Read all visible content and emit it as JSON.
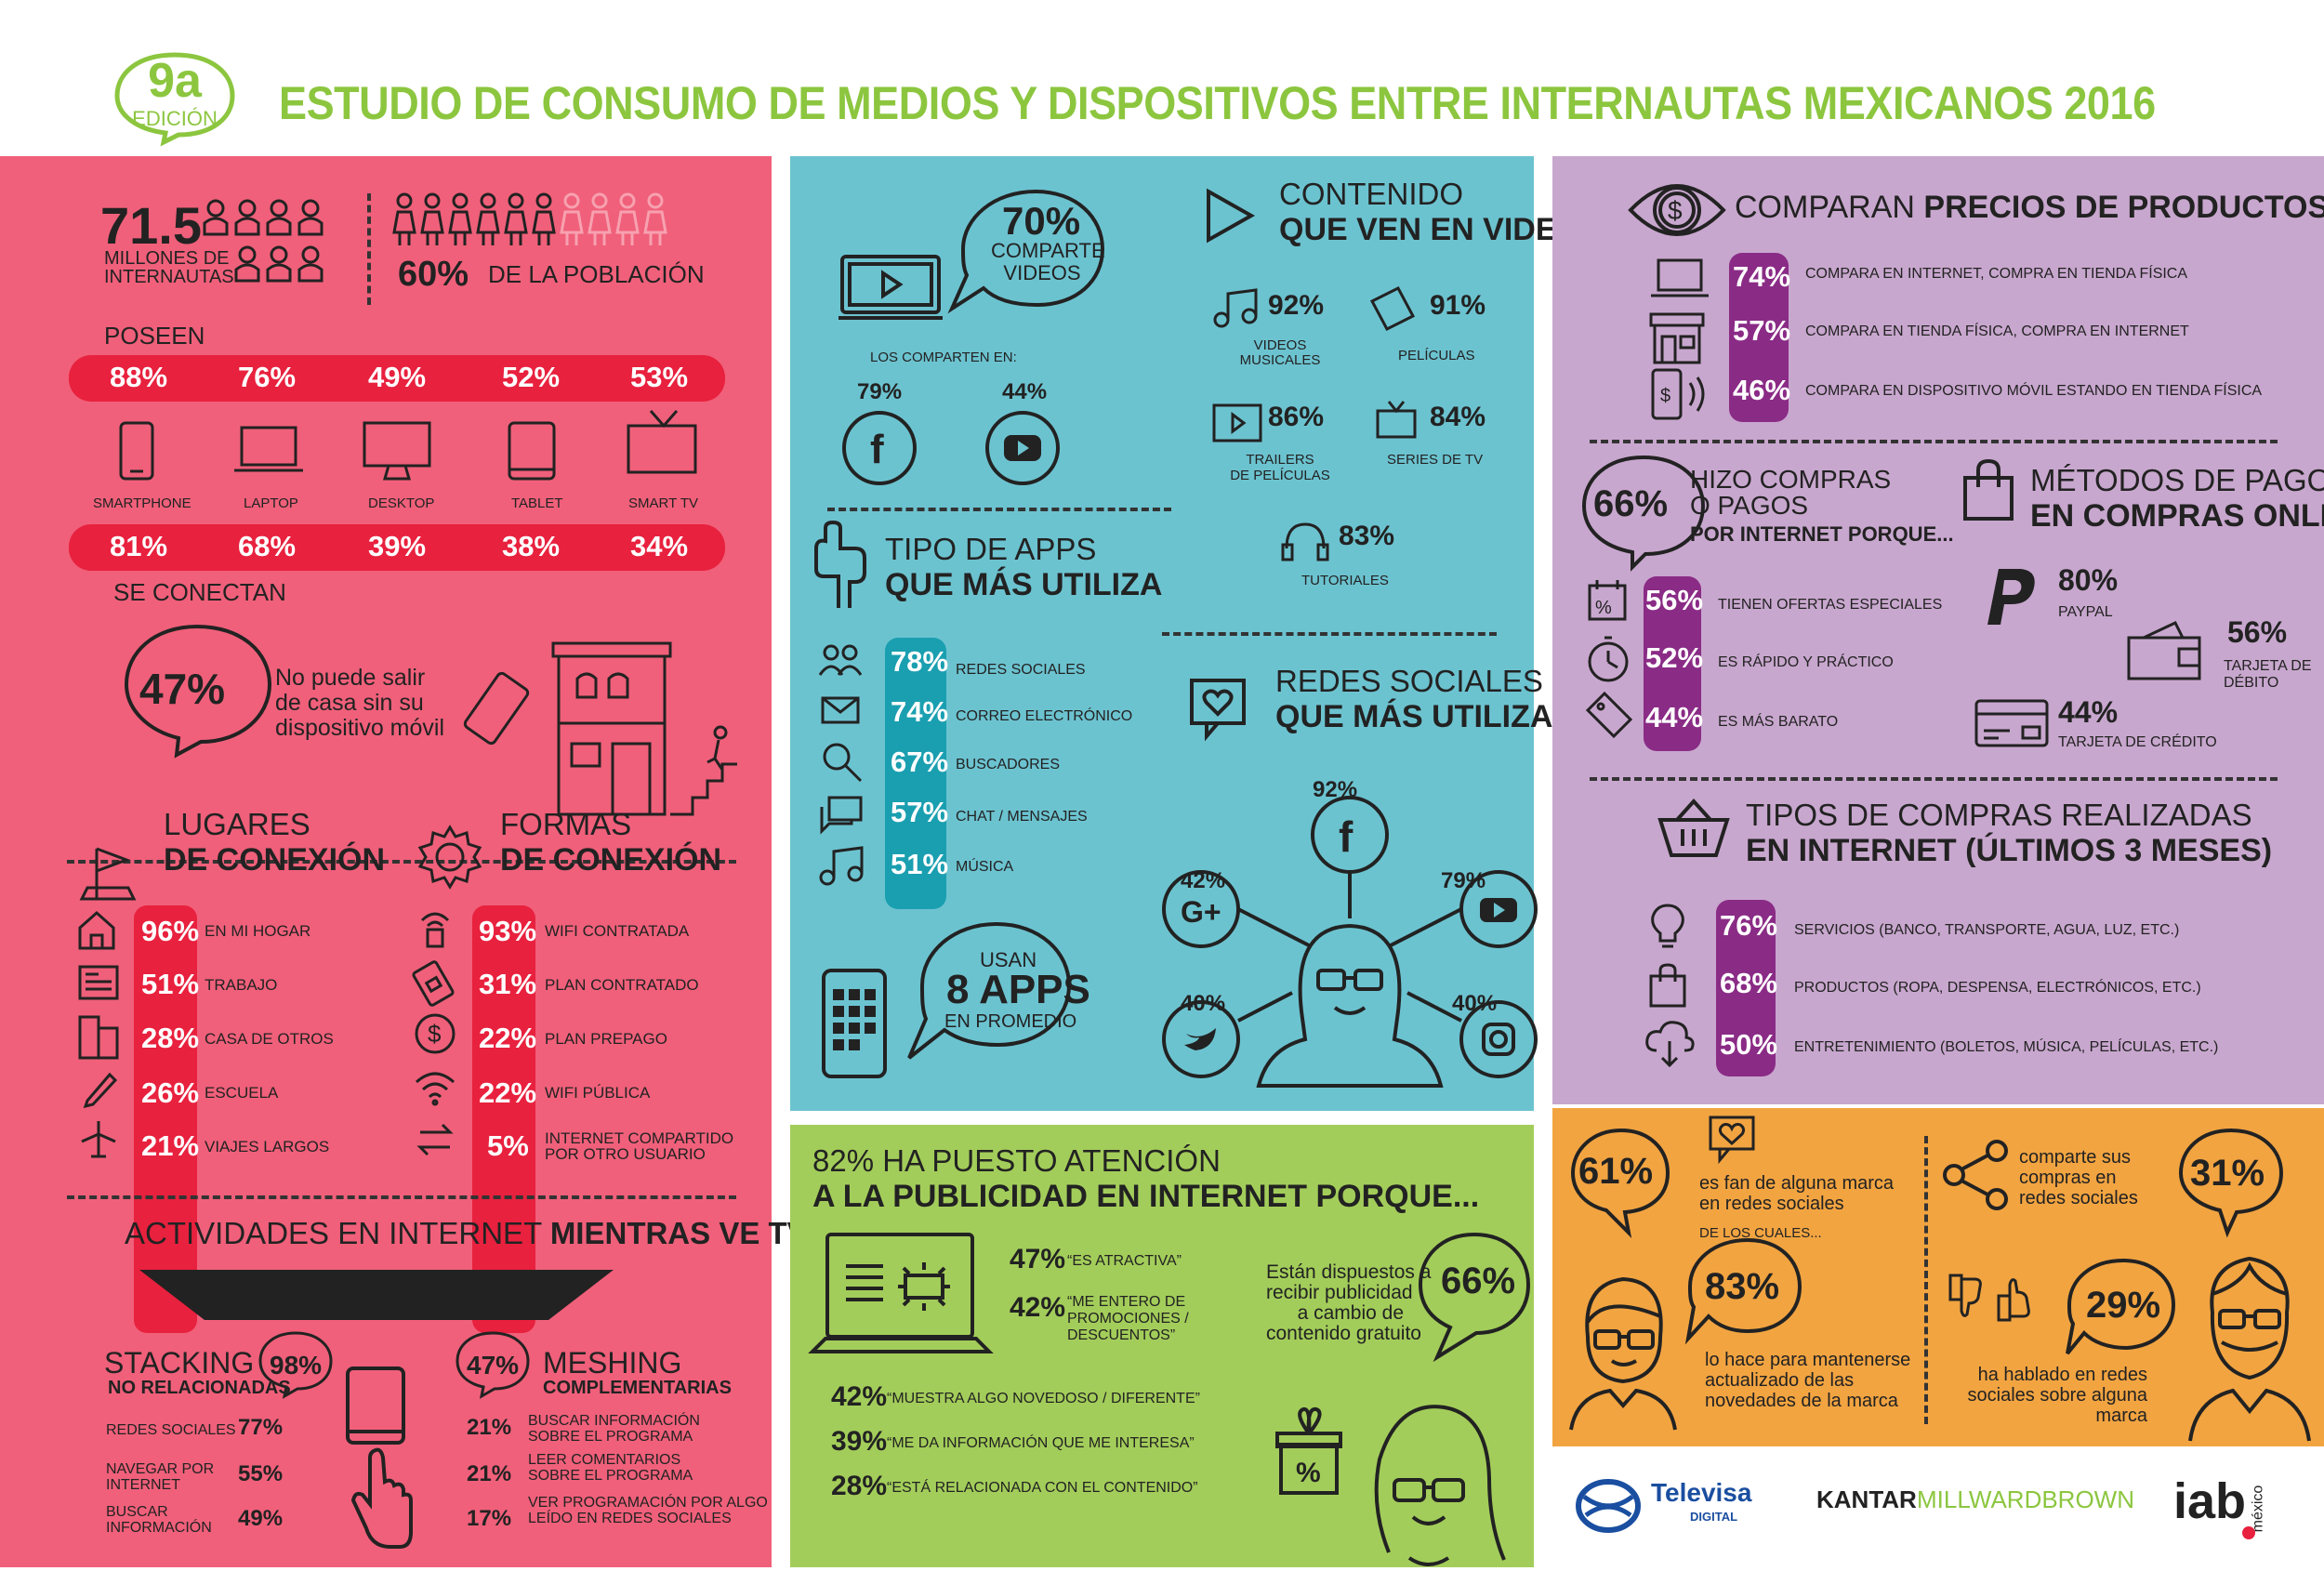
{
  "header": {
    "badge_number": "9a",
    "badge_label": "EDICIÓN",
    "title": "ESTUDIO DE CONSUMO DE MEDIOS Y DISPOSITIVOS ENTRE INTERNAUTAS MEXICANOS 2016"
  },
  "internautas": {
    "value": "71.5",
    "label_line1": "MILLONES DE",
    "label_line2": "INTERNAUTAS",
    "poblacion_value": "60%",
    "poblacion_label": "DE LA POBLACIÓN"
  },
  "poseen": {
    "label": "POSEEN",
    "values": [
      "88%",
      "76%",
      "49%",
      "52%",
      "53%"
    ],
    "devices": [
      "SMARTPHONE",
      "LAPTOP",
      "DESKTOP",
      "TABLET",
      "SMART TV"
    ],
    "connect_values": [
      "81%",
      "68%",
      "39%",
      "38%",
      "34%"
    ],
    "connect_label": "SE CONECTAN"
  },
  "no_salir": {
    "value": "47%",
    "line1": "No puede salir",
    "line2": "de casa sin su",
    "line3": "dispositivo móvil"
  },
  "lugares": {
    "title1": "LUGARES",
    "title2": "DE CONEXIÓN",
    "items": [
      {
        "value": "96%",
        "label": "EN MI HOGAR"
      },
      {
        "value": "51%",
        "label": "TRABAJO"
      },
      {
        "value": "28%",
        "label": "CASA DE OTROS"
      },
      {
        "value": "26%",
        "label": "ESCUELA"
      },
      {
        "value": "21%",
        "label": "VIAJES LARGOS"
      }
    ]
  },
  "formas": {
    "title1": "FORMAS",
    "title2": "DE CONEXIÓN",
    "items": [
      {
        "value": "93%",
        "label": "WIFI CONTRATADA"
      },
      {
        "value": "31%",
        "label": "PLAN CONTRATADO"
      },
      {
        "value": "22%",
        "label": "PLAN PREPAGO"
      },
      {
        "value": "22%",
        "label": "WIFI PÚBLICA"
      },
      {
        "value": "5%",
        "label": "INTERNET COMPARTIDO",
        "label2": "POR OTRO USUARIO"
      }
    ]
  },
  "actividades_tv": {
    "title_light": "ACTIVIDADES EN INTERNET",
    "title_bold": "MIENTRAS VE TV",
    "stacking": {
      "title": "STACKING",
      "subtitle": "NO RELACIONADAS",
      "value": "98%",
      "items": [
        {
          "label": "REDES SOCIALES",
          "value": "77%"
        },
        {
          "label": "NAVEGAR POR",
          "label2": "INTERNET",
          "value": "55%"
        },
        {
          "label": "BUSCAR",
          "label2": "INFORMACIÓN",
          "value": "49%"
        }
      ]
    },
    "meshing": {
      "title": "MESHING",
      "subtitle": "COMPLEMENTARIAS",
      "value": "47%",
      "items": [
        {
          "value": "21%",
          "label": "BUSCAR INFORMACIÓN",
          "label2": "SOBRE EL PROGRAMA"
        },
        {
          "value": "21%",
          "label": "LEER COMENTARIOS",
          "label2": "SOBRE EL PROGRAMA"
        },
        {
          "value": "17%",
          "label": "VER PROGRAMACIÓN POR ALGO",
          "label2": "LEÍDO EN REDES SOCIALES"
        }
      ]
    }
  },
  "comparte_videos": {
    "value": "70%",
    "line1": "COMPARTE",
    "line2": "VIDEOS",
    "comparten_en": "LOS COMPARTEN EN:",
    "facebook": "79%",
    "youtube": "44%"
  },
  "contenido_video": {
    "title1": "CONTENIDO",
    "title2": "QUE VEN EN VIDEO",
    "items": [
      {
        "value": "92%",
        "label": "VIDEOS",
        "label2": "MUSICALES"
      },
      {
        "value": "91%",
        "label": "PELÍCULAS"
      },
      {
        "value": "86%",
        "label": "TRAILERS",
        "label2": "DE PELÍCULAS"
      },
      {
        "value": "84%",
        "label": "SERIES DE TV"
      },
      {
        "value": "83%",
        "label": "TUTORIALES"
      }
    ]
  },
  "apps": {
    "title1": "TIPO DE APPS",
    "title2": "QUE MÁS UTILIZA",
    "items": [
      {
        "value": "78%",
        "label": "REDES SOCIALES"
      },
      {
        "value": "74%",
        "label": "CORREO ELECTRÓNICO"
      },
      {
        "value": "67%",
        "label": "BUSCADORES"
      },
      {
        "value": "57%",
        "label": "CHAT / MENSAJES"
      },
      {
        "value": "51%",
        "label": "MÚSICA"
      }
    ],
    "usan": "USAN",
    "apps_count": "8 APPS",
    "promedio": "EN PROMEDIO"
  },
  "redes": {
    "title1": "REDES SOCIALES",
    "title2": "QUE MÁS UTILIZA",
    "facebook": "92%",
    "google": "42%",
    "youtube": "79%",
    "twitter": "40%",
    "instagram": "40%"
  },
  "publicidad": {
    "title1": "82% HA PUESTO ATENCIÓN",
    "title2": "A LA PUBLICIDAD EN INTERNET PORQUE...",
    "items": [
      {
        "value": "47%",
        "label": "“ES ATRACTIVA”"
      },
      {
        "value": "42%",
        "label": "“ME ENTERO DE",
        "label2": "PROMOCIONES /",
        "label3": "DESCUENTOS”"
      },
      {
        "value": "42%",
        "label": "“MUESTRA ALGO NOVEDOSO / DIFERENTE”"
      },
      {
        "value": "39%",
        "label": "“ME DA INFORMACIÓN QUE ME INTERESA”"
      },
      {
        "value": "28%",
        "label": "“ESTÁ RELACIONADA CON EL CONTENIDO”"
      }
    ],
    "dispuestos_value": "66%",
    "dispuestos_lines": [
      "Están dispuestos a",
      "recibir publicidad",
      "a cambio de",
      "contenido gratuito"
    ]
  },
  "comparan": {
    "title_light": "COMPARAN",
    "title_bold": "PRECIOS DE PRODUCTOS...",
    "items": [
      {
        "value": "74%",
        "label": "COMPARA EN INTERNET, COMPRA EN TIENDA FÍSICA"
      },
      {
        "value": "57%",
        "label": "COMPARA EN TIENDA FÍSICA, COMPRA EN INTERNET"
      },
      {
        "value": "46%",
        "label": "COMPARA EN DISPOSITIVO MÓVIL ESTANDO EN TIENDA FÍSICA"
      }
    ]
  },
  "compras": {
    "value": "66%",
    "title1": "HIZO COMPRAS",
    "title2": "O PAGOS",
    "title3": "POR INTERNET PORQUE...",
    "items": [
      {
        "value": "56%",
        "label": "TIENEN OFERTAS ESPECIALES"
      },
      {
        "value": "52%",
        "label": "ES RÁPIDO Y PRÁCTICO"
      },
      {
        "value": "44%",
        "label": "ES MÁS BARATO"
      }
    ]
  },
  "metodos_pago": {
    "title1": "MÉTODOS DE PAGO",
    "title2": "EN COMPRAS ONLINE",
    "paypal_value": "80%",
    "paypal_label": "PAYPAL",
    "debito_value": "56%",
    "debito_label1": "TARJETA DE",
    "debito_label2": "DÉBITO",
    "credito_value": "44%",
    "credito_label": "TARJETA DE CRÉDITO"
  },
  "tipos_compras": {
    "title1": "TIPOS DE COMPRAS REALIZADAS",
    "title2": "EN INTERNET (ÚLTIMOS 3 MESES)",
    "items": [
      {
        "value": "76%",
        "label": "SERVICIOS (BANCO, TRANSPORTE, AGUA, LUZ, ETC.)"
      },
      {
        "value": "68%",
        "label": "PRODUCTOS (ROPA, DESPENSA, ELECTRÓNICOS, ETC.)"
      },
      {
        "value": "50%",
        "label": "ENTRETENIMIENTO (BOLETOS, MÚSICA, PELÍCULAS, ETC.)"
      }
    ]
  },
  "marcas": {
    "fan_value": "61%",
    "fan_lines": [
      "es fan de alguna marca",
      "en redes sociales"
    ],
    "de_los_cuales": "DE LOS CUALES...",
    "actualizado_value": "83%",
    "actualizado_lines": [
      "lo hace para mantenerse",
      "actualizado de las",
      "novedades de la marca"
    ],
    "comparte_value": "31%",
    "comparte_lines": [
      "comparte sus",
      "compras en",
      "redes sociales"
    ],
    "hablado_value": "29%",
    "hablado_lines": [
      "ha hablado en redes",
      "sociales sobre alguna",
      "marca"
    ]
  },
  "logos": {
    "televisa": "Televisa",
    "televisa_sub": "DIGITAL",
    "kantar": "KANTAR",
    "millward": "MILLWARDBROWN",
    "iab": "iab",
    "iab_sub": "méxico"
  },
  "colors": {
    "green_title": "#8cc63f",
    "pink": "#f0607a",
    "red_strip": "#e8213e",
    "blue": "#6cc3d0",
    "teal_strip": "#1a9fb0",
    "green": "#a3cd5a",
    "purple": "#c8a7ce",
    "purple_strip": "#8a2b86",
    "orange": "#f2a441"
  }
}
